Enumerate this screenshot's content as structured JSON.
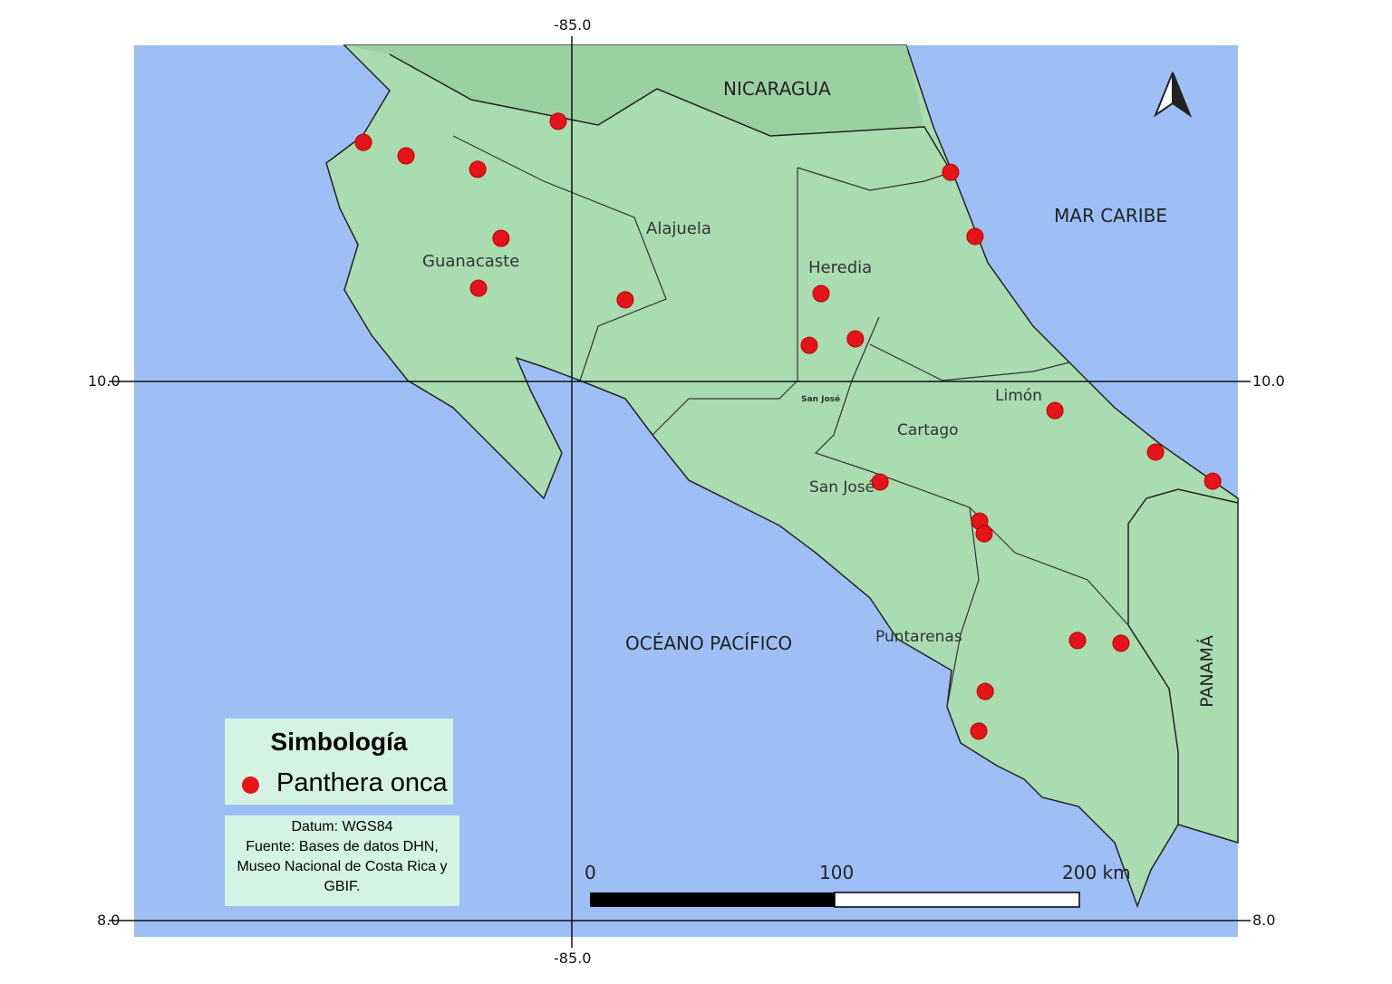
{
  "map": {
    "labels": {
      "nicaragua": "NICARAGUA",
      "mar_caribe": "MAR CARIBE",
      "oceano_pacifico": "OCÉANO PACÍFICO",
      "panama": "PANAMÁ",
      "alajuela": "Alajuela",
      "guanacaste": "Guanacaste",
      "heredia": "Heredia",
      "limon": "Limón",
      "cartago": "Cartago",
      "san_jose": "San José",
      "puntarenas": "Puntarenas",
      "san_jose_city": "San José"
    },
    "grid": {
      "lon_top": "-85.0",
      "lon_bottom": "-85.0",
      "lat10_left": "10.0",
      "lat10_right": "10.0",
      "lat8_left": "8.0",
      "lat8_right": "8.0"
    },
    "scale_bar": {
      "label_0": "0",
      "label_100": "100",
      "label_200": "200 km"
    },
    "colors": {
      "sea": "#9dbff5",
      "land": "#a9dcb0",
      "point": "#e5131a",
      "legend_bg": "#d4f3e3"
    },
    "north_arrow_icon": "north-arrow",
    "points": [
      {
        "lon": -85.777,
        "lat": 10.887
      },
      {
        "lon": -85.618,
        "lat": 10.837
      },
      {
        "lon": -85.351,
        "lat": 10.787
      },
      {
        "lon": -85.051,
        "lat": 10.965
      },
      {
        "lon": -85.264,
        "lat": 10.531
      },
      {
        "lon": -85.348,
        "lat": 10.346
      },
      {
        "lon": -84.801,
        "lat": 10.303
      },
      {
        "lon": -84.071,
        "lat": 10.326
      },
      {
        "lon": -84.115,
        "lat": 10.134
      },
      {
        "lon": -83.943,
        "lat": 10.158
      },
      {
        "lon": -83.588,
        "lat": 10.776
      },
      {
        "lon": -83.497,
        "lat": 10.538
      },
      {
        "lon": -83.199,
        "lat": 9.892
      },
      {
        "lon": -82.824,
        "lat": 9.738
      },
      {
        "lon": -82.611,
        "lat": 9.63
      },
      {
        "lon": -83.851,
        "lat": 9.627
      },
      {
        "lon": -83.48,
        "lat": 9.482
      },
      {
        "lon": -83.463,
        "lat": 9.435
      },
      {
        "lon": -83.115,
        "lat": 9.039
      },
      {
        "lon": -82.953,
        "lat": 9.029
      },
      {
        "lon": -83.459,
        "lat": 8.85
      },
      {
        "lon": -83.483,
        "lat": 8.703
      }
    ]
  },
  "legend": {
    "title": "Simbología",
    "item": "Panthera onca"
  },
  "source": {
    "line1": "Datum: WGS84",
    "line2": "Fuente: Bases de datos DHN,",
    "line3": "Museo Nacional de Costa Rica y",
    "line4": "GBIF."
  }
}
